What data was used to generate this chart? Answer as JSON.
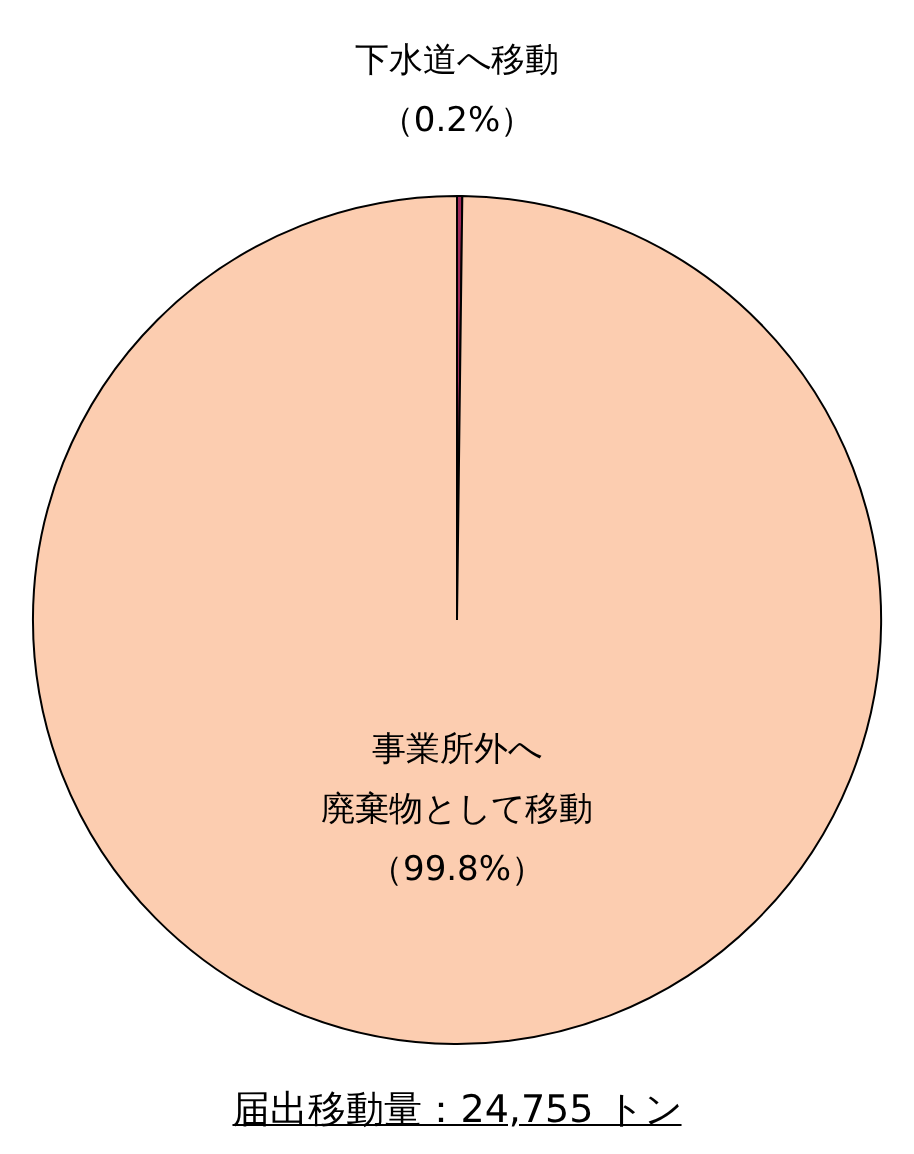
{
  "chart_data": {
    "type": "pie",
    "categories": [
      "下水道へ移動",
      "事業所外へ廃棄物として移動"
    ],
    "values": [
      0.2,
      99.8
    ],
    "colors": [
      "#a0285a",
      "#fccdb0"
    ],
    "value_labels": [
      "（0.2%）",
      "（99.8%）"
    ],
    "legend": false,
    "annotations": [
      "届出移動量：24,755 トン"
    ]
  }
}
